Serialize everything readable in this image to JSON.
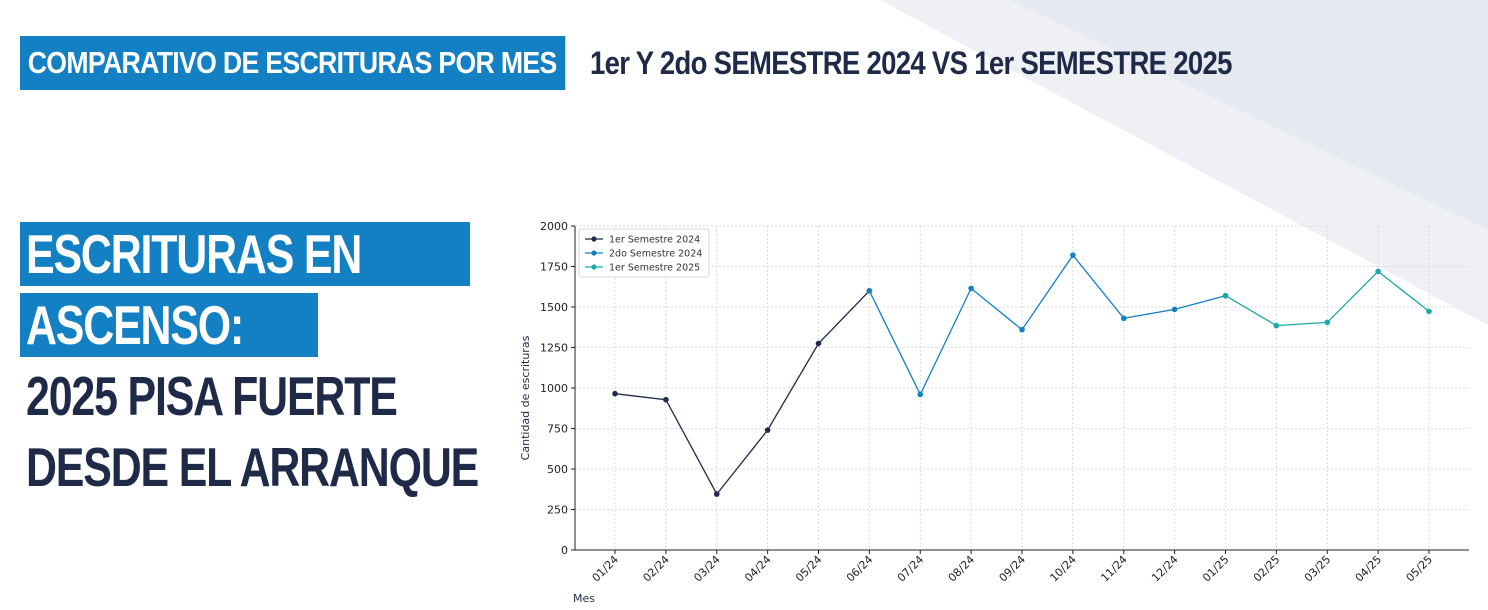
{
  "header": {
    "highlight": "COMPARATIVO DE ESCRITURAS POR MES",
    "rest": "1er Y 2do SEMESTRE 2024 VS 1er SEMESTRE 2025"
  },
  "headline": {
    "line1": "ESCRITURAS EN",
    "line2": "ASCENSO:",
    "line3": "2025 PISA FUERTE",
    "line4": "DESDE EL ARRANQUE"
  },
  "colors": {
    "brand_blue": "#1380c3",
    "navy": "#1f2a48",
    "series_1": "#1f2a48",
    "series_2": "#1380c3",
    "series_3": "#1aa9a6"
  },
  "chart_data": {
    "type": "line",
    "xlabel": "Mes",
    "ylabel": "Cantidad de escrituras",
    "ylim": [
      0,
      2000
    ],
    "yticks": [
      0,
      250,
      500,
      750,
      1000,
      1250,
      1500,
      1750,
      2000
    ],
    "grid": true,
    "legend_position": "top-left",
    "categories": [
      "01/24",
      "02/24",
      "03/24",
      "04/24",
      "05/24",
      "06/24",
      "07/24",
      "08/24",
      "09/24",
      "10/24",
      "11/24",
      "12/24",
      "01/25",
      "02/25",
      "03/25",
      "04/25",
      "05/25"
    ],
    "series": [
      {
        "name": "1er Semestre 2024",
        "color": "#1f2a48",
        "x": [
          "01/24",
          "02/24",
          "03/24",
          "04/24",
          "05/24",
          "06/24"
        ],
        "values": [
          965,
          928,
          345,
          740,
          1275,
          1600
        ]
      },
      {
        "name": "2do Semestre 2024",
        "color": "#1380c3",
        "x": [
          "06/24",
          "07/24",
          "08/24",
          "09/24",
          "10/24",
          "11/24",
          "12/24",
          "01/25"
        ],
        "values": [
          1600,
          960,
          1615,
          1360,
          1820,
          1430,
          1485,
          1570
        ]
      },
      {
        "name": "1er Semestre 2025",
        "color": "#1aa9a6",
        "x": [
          "01/25",
          "02/25",
          "03/25",
          "04/25",
          "05/25"
        ],
        "values": [
          1570,
          1385,
          1405,
          1720,
          1473
        ]
      }
    ]
  }
}
